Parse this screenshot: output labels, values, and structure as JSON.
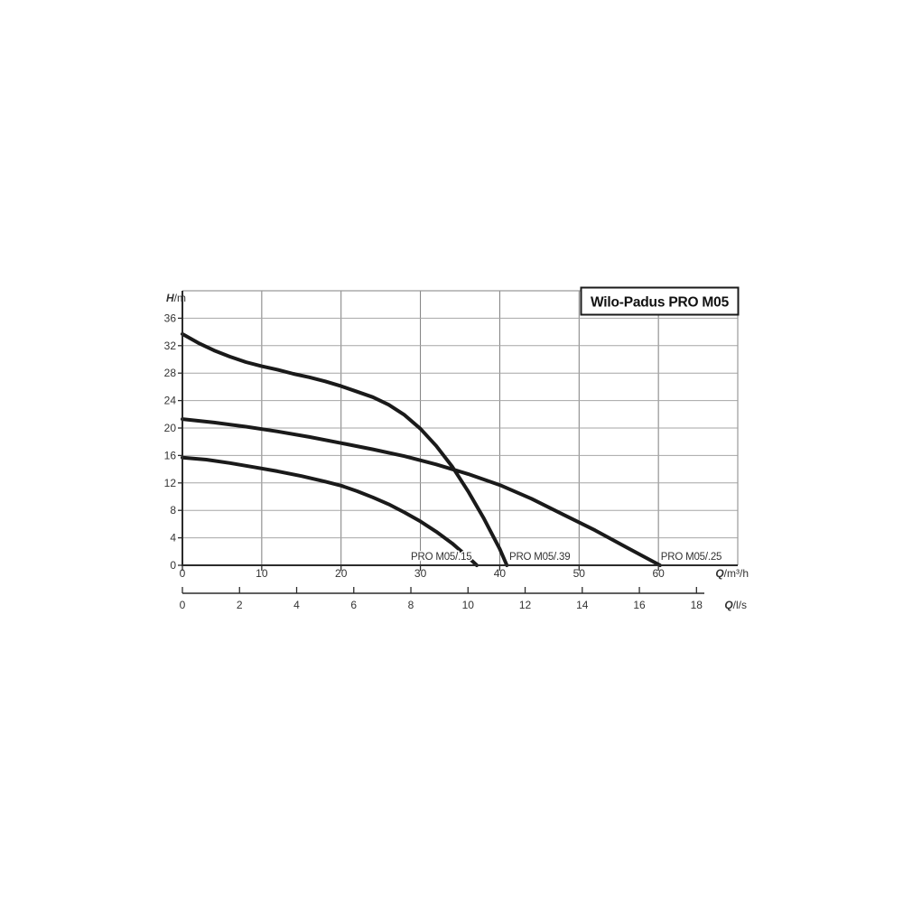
{
  "title": "Wilo-Padus PRO M05",
  "chart_data": {
    "type": "line",
    "title": "Wilo-Padus PRO M05",
    "x_axis": {
      "symbol": "Q",
      "unit": "/m³/h",
      "ticks": [
        0,
        10,
        20,
        30,
        40,
        50,
        60
      ],
      "min": 0,
      "max": 70,
      "grid_step": 10
    },
    "x_axis_secondary": {
      "symbol": "Q",
      "unit": "/l/s",
      "ticks": [
        0,
        2,
        4,
        6,
        8,
        10,
        12,
        14,
        16,
        18
      ],
      "m3h_per_ls": 3.6
    },
    "y_axis": {
      "symbol": "H",
      "unit": "/m",
      "ticks": [
        0,
        4,
        8,
        12,
        16,
        20,
        24,
        28,
        32,
        36
      ],
      "min": 0,
      "max": 40,
      "grid_step": 4
    },
    "grid": true,
    "legend_position": "labels-at-curve-ends",
    "series": [
      {
        "name": "PRO M05/.39",
        "label_q": 41.2,
        "label_h": 0.8,
        "points": [
          [
            0,
            33.7
          ],
          [
            2,
            32.4
          ],
          [
            4,
            31.3
          ],
          [
            6,
            30.4
          ],
          [
            8,
            29.6
          ],
          [
            10,
            29.0
          ],
          [
            12,
            28.5
          ],
          [
            14,
            27.9
          ],
          [
            16,
            27.4
          ],
          [
            18,
            26.8
          ],
          [
            20,
            26.1
          ],
          [
            22,
            25.3
          ],
          [
            24,
            24.5
          ],
          [
            26,
            23.4
          ],
          [
            28,
            21.9
          ],
          [
            30,
            19.9
          ],
          [
            32,
            17.4
          ],
          [
            34,
            14.4
          ],
          [
            36,
            10.8
          ],
          [
            38,
            6.8
          ],
          [
            40,
            2.4
          ],
          [
            40.9,
            0
          ]
        ]
      },
      {
        "name": "PRO M05/.25",
        "label_q": 60.3,
        "label_h": 0.8,
        "points": [
          [
            0,
            21.3
          ],
          [
            4,
            20.8
          ],
          [
            8,
            20.2
          ],
          [
            12,
            19.5
          ],
          [
            16,
            18.7
          ],
          [
            20,
            17.8
          ],
          [
            24,
            16.9
          ],
          [
            28,
            15.9
          ],
          [
            32,
            14.7
          ],
          [
            36,
            13.3
          ],
          [
            40,
            11.7
          ],
          [
            44,
            9.7
          ],
          [
            48,
            7.4
          ],
          [
            52,
            5.1
          ],
          [
            56,
            2.6
          ],
          [
            60.2,
            0
          ]
        ]
      },
      {
        "name": "PRO M05/.15",
        "label_q": 28.8,
        "label_h": 0.8,
        "points": [
          [
            0,
            15.7
          ],
          [
            3,
            15.4
          ],
          [
            6,
            14.9
          ],
          [
            9,
            14.3
          ],
          [
            12,
            13.7
          ],
          [
            15,
            13.0
          ],
          [
            18,
            12.2
          ],
          [
            20,
            11.6
          ],
          [
            22,
            10.8
          ],
          [
            24,
            9.9
          ],
          [
            26,
            8.9
          ],
          [
            28,
            7.7
          ],
          [
            30,
            6.4
          ],
          [
            32,
            4.9
          ],
          [
            34,
            3.2
          ],
          [
            36,
            1.2
          ],
          [
            37.1,
            0
          ]
        ]
      }
    ]
  },
  "colors": {
    "background": "#ffffff",
    "curve": "#1a1a1a",
    "grid_horizontal": "#a6a6a6",
    "grid_vertical": "#7d7d7d",
    "frame": "#9a9a9a",
    "axis": "#2b2b2b",
    "tick_label": "#333333",
    "curve_label": "#333333",
    "title_text": "#111111",
    "title_border": "#1a1a1a",
    "title_fill": "#ffffff"
  }
}
